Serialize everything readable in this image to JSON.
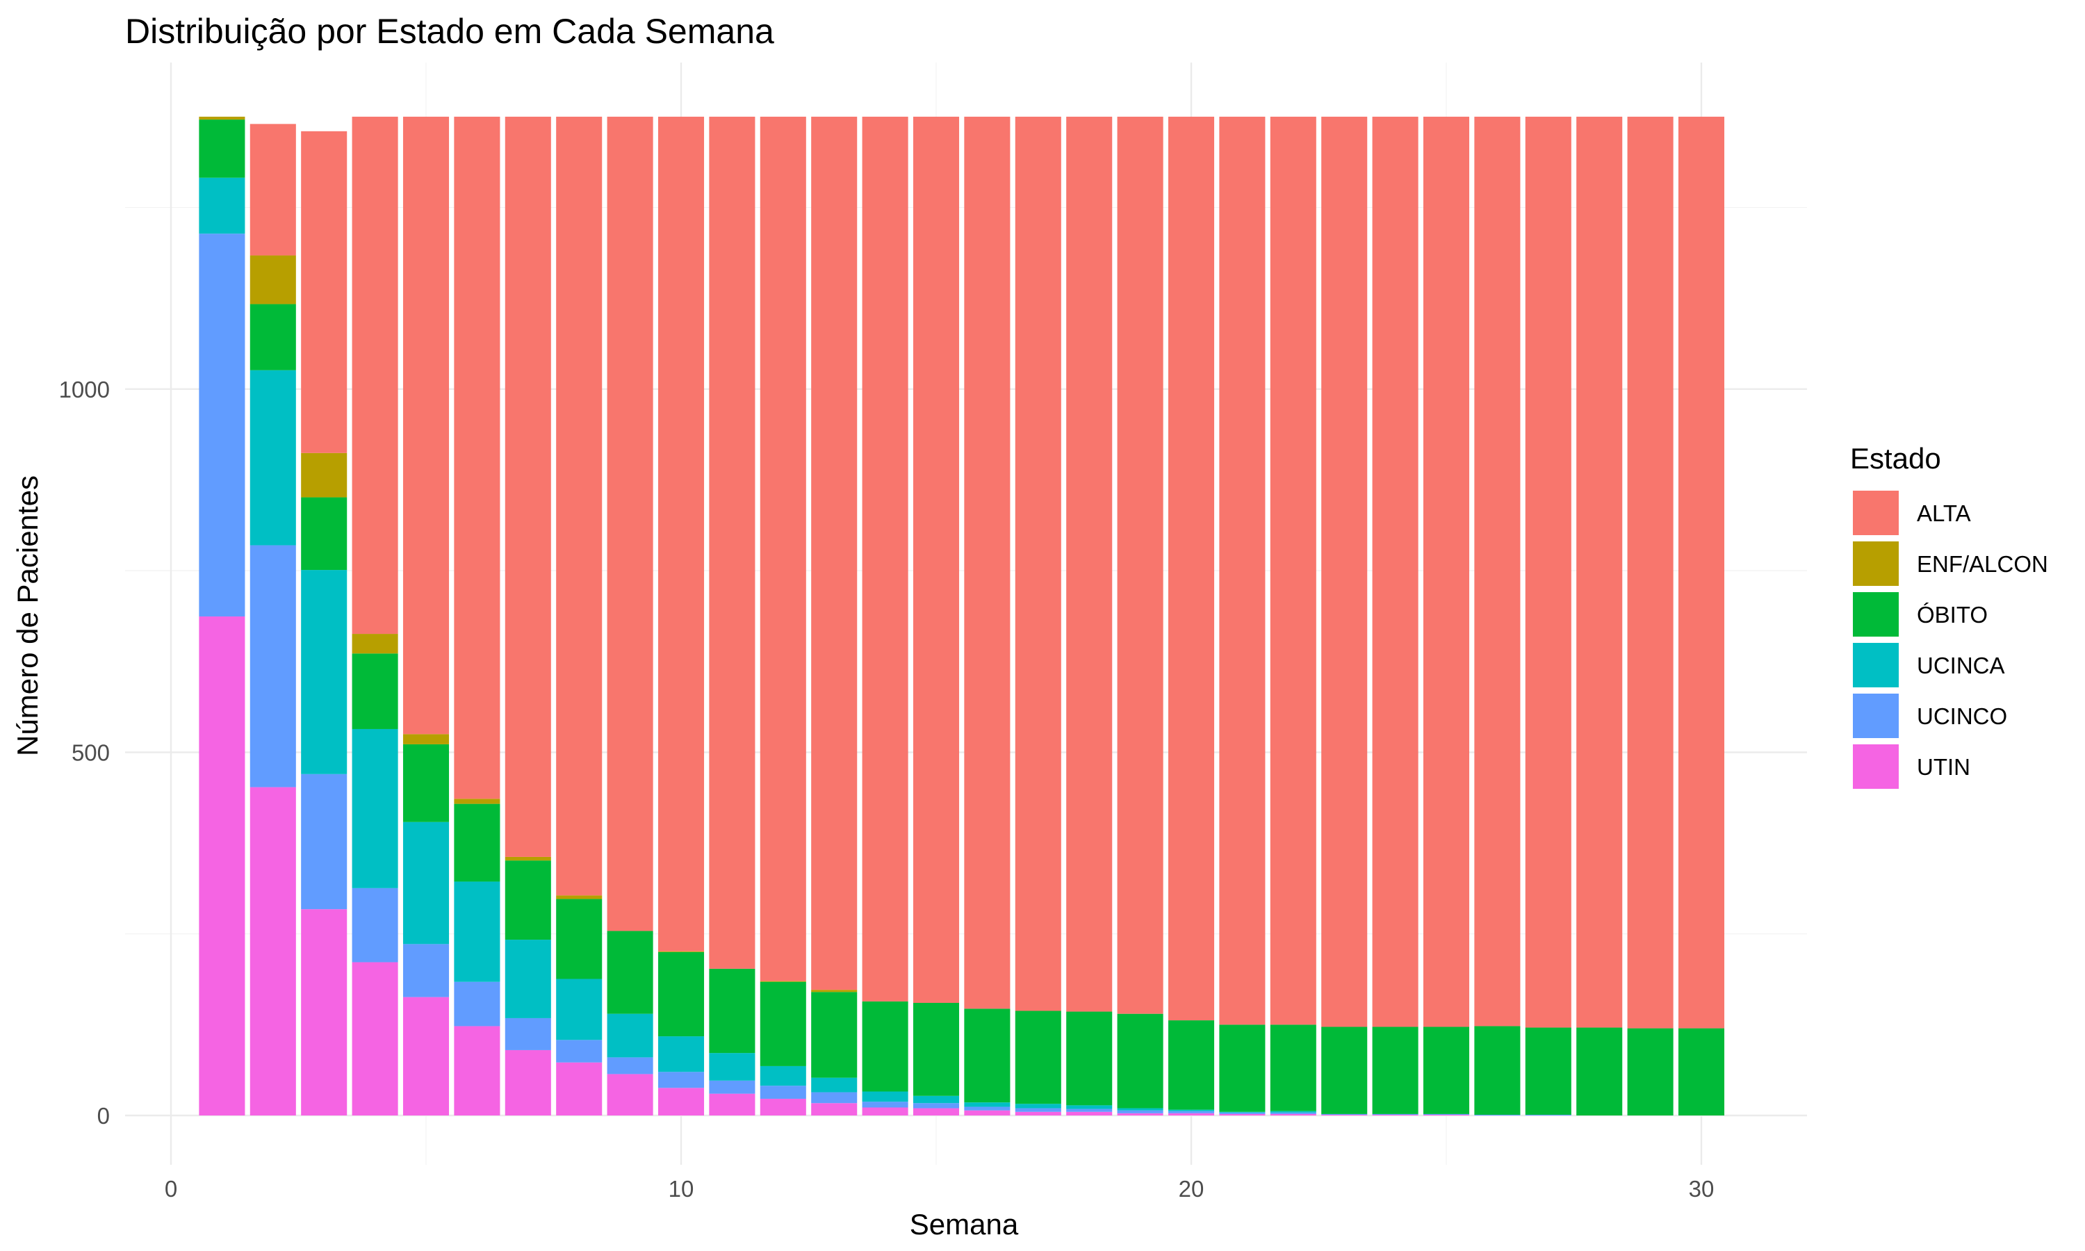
{
  "chart_data": {
    "type": "bar",
    "stacked": true,
    "title": "Distribuição por Estado em Cada Semana",
    "xlabel": "Semana",
    "ylabel": "Número de Pacientes",
    "xlim": [
      0,
      31
    ],
    "ylim": [
      0,
      1373
    ],
    "x_ticks": [
      0,
      10,
      20,
      30
    ],
    "y_ticks": [
      0,
      500,
      1000
    ],
    "grid": true,
    "legend": {
      "title": "Estado",
      "position": "right"
    },
    "x": [
      1,
      2,
      3,
      4,
      5,
      6,
      7,
      8,
      9,
      10,
      11,
      12,
      13,
      14,
      15,
      16,
      17,
      18,
      19,
      20,
      21,
      22,
      23,
      24,
      25,
      26,
      27,
      28,
      29,
      30
    ],
    "series": [
      {
        "name": "UTIN",
        "color": "#F564E3",
        "values": [
          687,
          452,
          284,
          211,
          163,
          123,
          90,
          73,
          57,
          38,
          30,
          23,
          17,
          11,
          10,
          7,
          5,
          5,
          3,
          3,
          2,
          2,
          1,
          1,
          1,
          0,
          0,
          0,
          0,
          0
        ]
      },
      {
        "name": "UCINCO",
        "color": "#619CFF",
        "values": [
          527,
          333,
          186,
          102,
          73,
          61,
          44,
          31,
          23,
          22,
          18,
          18,
          15,
          8,
          7,
          5,
          5,
          4,
          4,
          3,
          2,
          2,
          1,
          1,
          1,
          1,
          1,
          0,
          0,
          0
        ]
      },
      {
        "name": "UCINCA",
        "color": "#00BFC4",
        "values": [
          77,
          241,
          281,
          219,
          168,
          138,
          108,
          84,
          60,
          49,
          38,
          27,
          20,
          14,
          10,
          6,
          6,
          5,
          3,
          2,
          1,
          2,
          0,
          0,
          0,
          0,
          0,
          0,
          0,
          0
        ]
      },
      {
        "name": "ÓBITO",
        "color": "#00BA38",
        "values": [
          80,
          91,
          100,
          104,
          107,
          107,
          109,
          110,
          114,
          116,
          116,
          116,
          118,
          124,
          128,
          129,
          128,
          129,
          130,
          123,
          120,
          119,
          120,
          120,
          120,
          122,
          120,
          121,
          120,
          120
        ]
      },
      {
        "name": "ENF/ALCON",
        "color": "#B79F00",
        "values": [
          4,
          67,
          61,
          27,
          14,
          7,
          5,
          5,
          0,
          1,
          0,
          1,
          3,
          0,
          0,
          0,
          0,
          0,
          0,
          0,
          0,
          0,
          0,
          0,
          0,
          0,
          0,
          0,
          0,
          0
        ]
      },
      {
        "name": "ALTA",
        "color": "#F8766D",
        "values": [
          0,
          181,
          443,
          712,
          850,
          939,
          1019,
          1072,
          1121,
          1149,
          1173,
          1190,
          1202,
          1218,
          1220,
          1228,
          1231,
          1232,
          1235,
          1244,
          1250,
          1250,
          1253,
          1253,
          1253,
          1252,
          1254,
          1254,
          1255,
          1255
        ]
      }
    ]
  }
}
